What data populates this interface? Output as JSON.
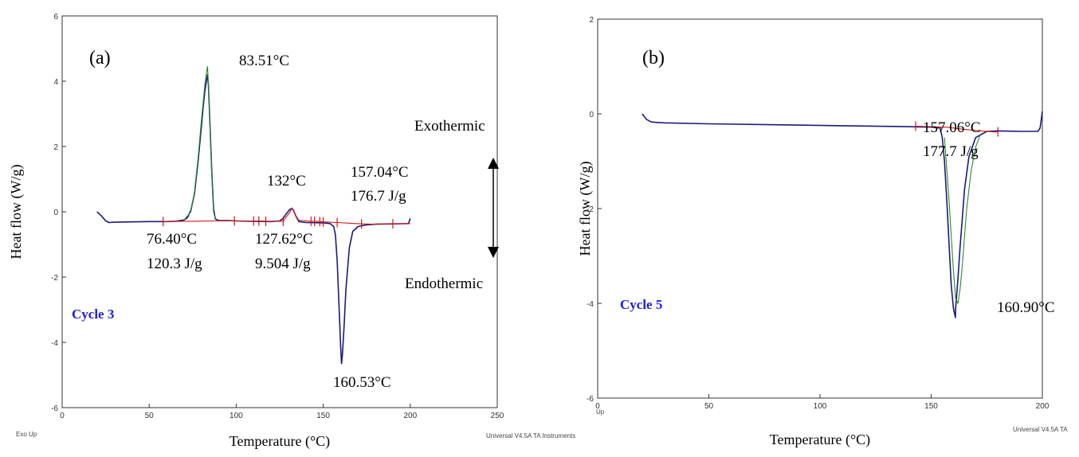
{
  "chart_data": [
    {
      "type": "line",
      "panel_label": "(a)",
      "xlabel": "Temperature (°C)",
      "ylabel": "Heat flow (W/g)",
      "xlim": [
        0,
        250
      ],
      "ylim": [
        -6,
        6
      ],
      "x_ticks": [
        0,
        50,
        100,
        150,
        200,
        250
      ],
      "y_ticks": [
        -6,
        -4,
        -2,
        0,
        2,
        4,
        6
      ],
      "grid": false,
      "cycle_label": "Cycle 3",
      "exo_label": "Exo Up",
      "footer": "Universal V4.5A TA Instruments",
      "direction_labels": {
        "top": "Exothermic",
        "bottom": "Endothermic"
      },
      "annotations": [
        {
          "text": "83.51°C",
          "x": 83.51,
          "y": 4.2
        },
        {
          "text": "132°C",
          "x": 132,
          "y": 0.1
        },
        {
          "lines": [
            "157.04°C",
            "176.7 J/g"
          ],
          "x": 157.04
        },
        {
          "lines": [
            "76.40°C",
            "120.3 J/g"
          ],
          "x": 76.4
        },
        {
          "lines": [
            "127.62°C",
            "9.504 J/g"
          ],
          "x": 127.62
        },
        {
          "text": "160.53°C",
          "x": 160.53,
          "y": -4.65
        }
      ],
      "series": [
        {
          "color": "#1a1a7a",
          "x": [
            20,
            23,
            25,
            27,
            30,
            40,
            50,
            60,
            65,
            70,
            72,
            74,
            76,
            78,
            80,
            81,
            82,
            83,
            83.51,
            84,
            85,
            86,
            87,
            88,
            90,
            95,
            100,
            110,
            120,
            125,
            127,
            129,
            130,
            131,
            132,
            133,
            134,
            136,
            140,
            150,
            154,
            156,
            157,
            158,
            159,
            160,
            160.53,
            161,
            162,
            163,
            165,
            167,
            170,
            175,
            180,
            190,
            199,
            200
          ],
          "y": [
            0,
            -0.15,
            -0.28,
            -0.33,
            -0.32,
            -0.31,
            -0.3,
            -0.3,
            -0.29,
            -0.25,
            -0.18,
            0.05,
            0.55,
            1.5,
            2.6,
            3.2,
            3.7,
            4.05,
            4.2,
            3.9,
            2.6,
            1.2,
            0.1,
            -0.22,
            -0.27,
            -0.27,
            -0.28,
            -0.29,
            -0.3,
            -0.28,
            -0.2,
            -0.05,
            0.02,
            0.08,
            0.1,
            0.04,
            -0.1,
            -0.3,
            -0.33,
            -0.34,
            -0.36,
            -0.45,
            -0.7,
            -1.5,
            -2.8,
            -4.1,
            -4.65,
            -4.4,
            -3.5,
            -2.4,
            -1.1,
            -0.6,
            -0.45,
            -0.4,
            -0.38,
            -0.37,
            -0.36,
            -0.2
          ]
        },
        {
          "color": "#2a8a2a",
          "x": [
            70,
            74,
            76,
            78,
            80,
            82,
            83,
            83.51,
            84,
            85,
            86,
            87,
            88
          ],
          "y": [
            -0.25,
            0.0,
            0.6,
            1.6,
            2.8,
            3.9,
            4.3,
            4.45,
            3.95,
            2.5,
            1.1,
            0.0,
            -0.22
          ]
        },
        {
          "color": "#d01818",
          "x": [
            58,
            70,
            76,
            86,
            99,
            110,
            113,
            117,
            127,
            129,
            131,
            132,
            133,
            134,
            136,
            143,
            145,
            148,
            150,
            158,
            165,
            172,
            179,
            190,
            200
          ],
          "y": [
            -0.3,
            -0.29,
            -0.29,
            -0.28,
            -0.28,
            -0.28,
            -0.28,
            -0.29,
            -0.29,
            -0.15,
            0.0,
            0.12,
            0.05,
            -0.1,
            -0.26,
            -0.29,
            -0.29,
            -0.3,
            -0.31,
            -0.33,
            -0.35,
            -0.37,
            -0.38,
            -0.37,
            -0.36
          ]
        }
      ]
    },
    {
      "type": "line",
      "panel_label": "(b)",
      "xlabel": "Temperature (°C)",
      "ylabel": "Heat flow (W/g)",
      "xlim": [
        0,
        200
      ],
      "ylim": [
        -6,
        2
      ],
      "x_ticks": [
        0,
        50,
        100,
        150,
        200
      ],
      "y_ticks": [
        -6,
        -4,
        -2,
        0,
        2
      ],
      "grid": false,
      "cycle_label": "Cycle 5",
      "exo_label": "Up",
      "footer": "Universal V4.5A TA",
      "annotations": [
        {
          "lines": [
            "157.06°C",
            "177.7 J/g"
          ],
          "x": 157.06
        },
        {
          "text": "160.90°C",
          "x": 160.9,
          "y": -4.3
        }
      ],
      "series": [
        {
          "color": "#1a1a7a",
          "x": [
            20,
            22,
            24,
            26,
            30,
            50,
            80,
            110,
            140,
            150,
            154,
            155,
            156,
            157,
            158,
            159,
            160,
            160.9,
            161,
            162,
            163,
            164,
            165,
            167,
            170,
            175,
            180,
            190,
            198,
            199,
            200
          ],
          "y": [
            0.0,
            -0.12,
            -0.17,
            -0.18,
            -0.19,
            -0.21,
            -0.23,
            -0.25,
            -0.27,
            -0.28,
            -0.3,
            -0.5,
            -1.0,
            -1.8,
            -2.7,
            -3.6,
            -4.1,
            -4.3,
            -4.1,
            -3.5,
            -2.8,
            -2.2,
            -1.6,
            -0.9,
            -0.5,
            -0.37,
            -0.36,
            -0.37,
            -0.37,
            -0.3,
            0.05
          ]
        },
        {
          "color": "#2a8a2a",
          "x": [
            156,
            158,
            160,
            161,
            162,
            163,
            164,
            165,
            166,
            168,
            170,
            172
          ],
          "y": [
            -0.5,
            -1.8,
            -3.3,
            -3.9,
            -4.0,
            -3.7,
            -3.2,
            -2.6,
            -2.0,
            -1.2,
            -0.7,
            -0.45
          ]
        },
        {
          "color": "#d01818",
          "x": [
            143,
            150,
            155,
            157,
            160,
            165,
            170,
            175,
            178,
            180
          ],
          "y": [
            -0.26,
            -0.27,
            -0.28,
            -0.28,
            -0.3,
            -0.33,
            -0.35,
            -0.37,
            -0.38,
            -0.38
          ]
        }
      ]
    }
  ]
}
